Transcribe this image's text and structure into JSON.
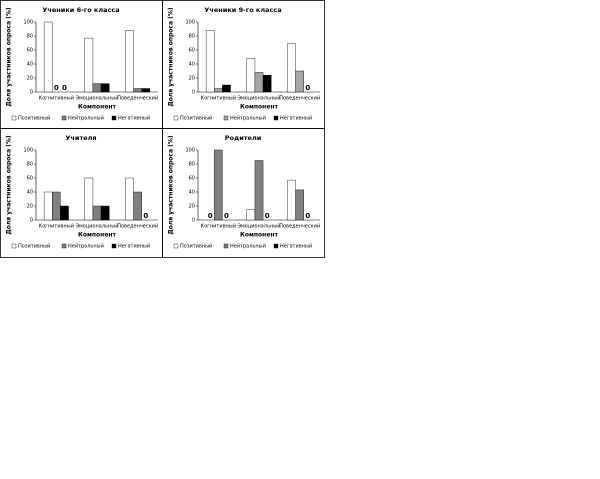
{
  "chart_data": [
    {
      "type": "bar",
      "title": "Ученики 6-го класса",
      "x_label": "Компонент",
      "y_label": "Доля участников опроса (%)",
      "categories": [
        "Когнитивный",
        "Эмоциональный",
        "Поведенческий"
      ],
      "series": [
        {
          "name": "Позитивный",
          "color": "#ffffff",
          "values": [
            100,
            77,
            88
          ]
        },
        {
          "name": "Нейтральный",
          "color": "#808080",
          "values": [
            0,
            12,
            5
          ]
        },
        {
          "name": "Негативный",
          "color": "#000000",
          "values": [
            0,
            12,
            5
          ]
        }
      ],
      "ylim": [
        0,
        100
      ],
      "yticks": [
        0,
        20,
        40,
        60,
        80,
        100
      ]
    },
    {
      "type": "bar",
      "title": "Ученики 9-го класса",
      "x_label": "Компонент",
      "y_label": "Доля участников опроса (%)",
      "categories": [
        "Когнитивный",
        "Эмоциональный",
        "Поведенческий"
      ],
      "series": [
        {
          "name": "Позитивный",
          "color": "#ffffff",
          "values": [
            88,
            48,
            69
          ]
        },
        {
          "name": "Нейтральный",
          "color": "#a6a6a6",
          "values": [
            5,
            28,
            30
          ]
        },
        {
          "name": "Негативный",
          "color": "#000000",
          "values": [
            10,
            24,
            0
          ]
        }
      ],
      "ylim": [
        0,
        100
      ],
      "yticks": [
        0,
        20,
        40,
        60,
        80,
        100
      ]
    },
    {
      "type": "bar",
      "title": "Учителя",
      "x_label": "Компонент",
      "y_label": "Доля участников опроса (%)",
      "categories": [
        "Когнитивный",
        "Эмоциональный",
        "Поведенческий"
      ],
      "series": [
        {
          "name": "Позитивный",
          "color": "#ffffff",
          "values": [
            40,
            60,
            60
          ]
        },
        {
          "name": "Нейтральный",
          "color": "#808080",
          "values": [
            40,
            20,
            40
          ]
        },
        {
          "name": "Негативный",
          "color": "#000000",
          "values": [
            20,
            20,
            0
          ]
        }
      ],
      "ylim": [
        0,
        100
      ],
      "yticks": [
        0,
        20,
        40,
        60,
        80,
        100
      ]
    },
    {
      "type": "bar",
      "title": "Родители",
      "x_label": "Компонент",
      "y_label": "Доля участников опроса (%)",
      "categories": [
        "Когнитивный",
        "Эмоциональный",
        "Поведенческий"
      ],
      "series": [
        {
          "name": "Позитивный",
          "color": "#ffffff",
          "values": [
            0,
            15,
            57
          ]
        },
        {
          "name": "Нейтральный",
          "color": "#808080",
          "values": [
            100,
            85,
            43
          ]
        },
        {
          "name": "Негативный",
          "color": "#000000",
          "values": [
            0,
            0,
            0
          ]
        }
      ],
      "ylim": [
        0,
        100
      ],
      "yticks": [
        0,
        20,
        40,
        60,
        80,
        100
      ]
    }
  ]
}
